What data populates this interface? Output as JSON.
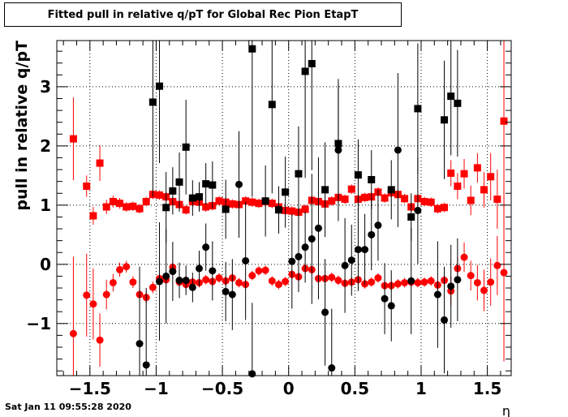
{
  "title": "Fitted pull in relative q/pT for Global Rec Pion EtapT",
  "timestamp": "Sat Jan 11 09:55:28 2020",
  "chart_data": {
    "type": "scatter",
    "xlabel": "η",
    "ylabel": "pull in relative q/pT",
    "xlim": [
      -1.75,
      1.68
    ],
    "ylim": [
      -1.88,
      3.78
    ],
    "xticks": [
      -1.5,
      -1,
      -0.5,
      0,
      0.5,
      1,
      1.5
    ],
    "xtick_labels": [
      "−1.5",
      "−1",
      "−0.5",
      "0",
      "0.5",
      "1",
      "1.5"
    ],
    "yticks": [
      -1,
      0,
      1,
      2,
      3
    ],
    "ytick_labels": [
      "−1",
      "0",
      "1",
      "2",
      "3"
    ],
    "grid": true,
    "colors": {
      "red": "#ff0000",
      "black": "#000000"
    },
    "series": [
      {
        "marker": "square",
        "color": "#ff0000",
        "points": [
          [
            -1.625,
            2.12,
            0.7
          ],
          [
            -1.525,
            1.32,
            0.18
          ],
          [
            -1.475,
            0.82,
            0.15
          ],
          [
            -1.425,
            1.71,
            0.3
          ],
          [
            -1.375,
            0.97,
            0.12
          ],
          [
            -1.325,
            1.06,
            0.1
          ],
          [
            -1.275,
            1.03,
            0.09
          ],
          [
            -1.225,
            0.97,
            0.08
          ],
          [
            -1.175,
            0.98,
            0.08
          ],
          [
            -1.125,
            0.94,
            0.08
          ],
          [
            -1.075,
            1.06,
            0.08
          ],
          [
            -1.025,
            1.18,
            0.08
          ],
          [
            -0.975,
            1.17,
            0.08
          ],
          [
            -0.925,
            1.14,
            0.08
          ],
          [
            -0.875,
            1.06,
            0.08
          ],
          [
            -0.825,
            1.01,
            0.08
          ],
          [
            -0.775,
            0.92,
            0.08
          ],
          [
            -0.725,
            1.06,
            0.08
          ],
          [
            -0.675,
            1.05,
            0.08
          ],
          [
            -0.625,
            0.97,
            0.08
          ],
          [
            -0.575,
            0.99,
            0.08
          ],
          [
            -0.525,
            1.07,
            0.08
          ],
          [
            -0.475,
            1.05,
            0.08
          ],
          [
            -0.425,
            1.02,
            0.08
          ],
          [
            -0.375,
            1.01,
            0.08
          ],
          [
            -0.325,
            1.07,
            0.08
          ],
          [
            -0.275,
            1.05,
            0.08
          ],
          [
            -0.225,
            1.03,
            0.08
          ],
          [
            -0.175,
            1.06,
            0.08
          ],
          [
            -0.125,
            1.03,
            0.08
          ],
          [
            -0.075,
            0.97,
            0.08
          ],
          [
            -0.025,
            0.91,
            0.08
          ],
          [
            0.025,
            0.9,
            0.08
          ],
          [
            0.075,
            0.88,
            0.08
          ],
          [
            0.125,
            0.93,
            0.08
          ],
          [
            0.175,
            1.08,
            0.08
          ],
          [
            0.225,
            1.06,
            0.08
          ],
          [
            0.275,
            1.02,
            0.08
          ],
          [
            0.325,
            1.07,
            0.08
          ],
          [
            0.375,
            1.13,
            0.08
          ],
          [
            0.425,
            1.1,
            0.08
          ],
          [
            0.475,
            1.27,
            0.08
          ],
          [
            0.525,
            1.1,
            0.08
          ],
          [
            0.575,
            1.13,
            0.08
          ],
          [
            0.625,
            1.14,
            0.08
          ],
          [
            0.675,
            1.22,
            0.08
          ],
          [
            0.725,
            1.12,
            0.08
          ],
          [
            0.775,
            1.21,
            0.08
          ],
          [
            0.825,
            1.18,
            0.08
          ],
          [
            0.875,
            1.11,
            0.08
          ],
          [
            0.925,
            0.97,
            0.08
          ],
          [
            0.975,
            1.11,
            0.08
          ],
          [
            1.025,
            1.06,
            0.08
          ],
          [
            1.075,
            1.05,
            0.08
          ],
          [
            1.125,
            0.94,
            0.08
          ],
          [
            1.175,
            0.96,
            0.08
          ],
          [
            1.225,
            1.54,
            0.22
          ],
          [
            1.275,
            1.32,
            0.22
          ],
          [
            1.325,
            1.53,
            0.25
          ],
          [
            1.375,
            1.08,
            0.25
          ],
          [
            1.425,
            1.63,
            0.25
          ],
          [
            1.475,
            1.26,
            0.3
          ],
          [
            1.525,
            1.48,
            0.4
          ],
          [
            1.575,
            1.1,
            0.5
          ],
          [
            1.625,
            2.42,
            2.0
          ]
        ]
      },
      {
        "marker": "circle",
        "color": "#ff0000",
        "points": [
          [
            -1.625,
            -1.17,
            1.3
          ],
          [
            -1.525,
            -0.52,
            0.7
          ],
          [
            -1.475,
            -0.67,
            0.6
          ],
          [
            -1.425,
            -1.28,
            0.45
          ],
          [
            -1.375,
            -0.51,
            0.25
          ],
          [
            -1.325,
            -0.31,
            0.15
          ],
          [
            -1.275,
            -0.09,
            0.12
          ],
          [
            -1.225,
            -0.04,
            0.1
          ],
          [
            -1.175,
            -0.3,
            0.1
          ],
          [
            -1.125,
            -0.51,
            0.1
          ],
          [
            -1.075,
            -0.56,
            0.1
          ],
          [
            -1.025,
            -0.39,
            0.1
          ],
          [
            -0.975,
            -0.24,
            0.08
          ],
          [
            -0.925,
            -0.26,
            0.08
          ],
          [
            -0.875,
            -0.05,
            0.08
          ],
          [
            -0.825,
            -0.3,
            0.08
          ],
          [
            -0.775,
            -0.34,
            0.08
          ],
          [
            -0.725,
            -0.3,
            0.08
          ],
          [
            -0.675,
            -0.31,
            0.08
          ],
          [
            -0.625,
            -0.26,
            0.08
          ],
          [
            -0.575,
            -0.29,
            0.08
          ],
          [
            -0.525,
            -0.23,
            0.08
          ],
          [
            -0.475,
            -0.28,
            0.08
          ],
          [
            -0.425,
            -0.23,
            0.08
          ],
          [
            -0.375,
            -0.31,
            0.08
          ],
          [
            -0.325,
            -0.34,
            0.08
          ],
          [
            -0.275,
            -0.19,
            0.08
          ],
          [
            -0.225,
            -0.11,
            0.08
          ],
          [
            -0.175,
            -0.1,
            0.08
          ],
          [
            -0.125,
            -0.28,
            0.08
          ],
          [
            -0.075,
            -0.34,
            0.08
          ],
          [
            -0.025,
            -0.29,
            0.08
          ],
          [
            0.025,
            -0.17,
            0.08
          ],
          [
            0.075,
            -0.21,
            0.08
          ],
          [
            0.125,
            -0.07,
            0.08
          ],
          [
            0.175,
            -0.09,
            0.08
          ],
          [
            0.225,
            -0.24,
            0.08
          ],
          [
            0.275,
            -0.24,
            0.08
          ],
          [
            0.325,
            -0.22,
            0.08
          ],
          [
            0.375,
            -0.27,
            0.08
          ],
          [
            0.425,
            -0.32,
            0.08
          ],
          [
            0.475,
            -0.3,
            0.08
          ],
          [
            0.525,
            -0.26,
            0.08
          ],
          [
            0.575,
            -0.33,
            0.08
          ],
          [
            0.625,
            -0.3,
            0.08
          ],
          [
            0.675,
            -0.23,
            0.08
          ],
          [
            0.725,
            -0.36,
            0.08
          ],
          [
            0.775,
            -0.36,
            0.08
          ],
          [
            0.825,
            -0.33,
            0.08
          ],
          [
            0.875,
            -0.31,
            0.08
          ],
          [
            0.925,
            -0.3,
            0.08
          ],
          [
            0.975,
            -0.31,
            0.08
          ],
          [
            1.025,
            -0.3,
            0.08
          ],
          [
            1.075,
            -0.28,
            0.08
          ],
          [
            1.125,
            -0.35,
            0.08
          ],
          [
            1.175,
            -0.27,
            0.1
          ],
          [
            1.225,
            -0.45,
            0.25
          ],
          [
            1.275,
            -0.07,
            0.2
          ],
          [
            1.325,
            0.12,
            0.25
          ],
          [
            1.375,
            -0.19,
            0.25
          ],
          [
            1.425,
            -0.31,
            0.3
          ],
          [
            1.475,
            -0.44,
            0.35
          ],
          [
            1.525,
            -0.3,
            0.4
          ],
          [
            1.575,
            -0.02,
            0.5
          ],
          [
            1.625,
            -0.14,
            1.5
          ]
        ]
      },
      {
        "marker": "square",
        "color": "#000000",
        "points": [
          [
            -1.025,
            2.74,
            1.6
          ],
          [
            -0.975,
            3.01,
            1.3
          ],
          [
            -0.925,
            0.96,
            0.6
          ],
          [
            -0.875,
            1.24,
            0.4
          ],
          [
            -0.825,
            1.39,
            0.5
          ],
          [
            -0.775,
            1.98,
            0.8
          ],
          [
            -0.725,
            1.12,
            0.3
          ],
          [
            -0.675,
            1.14,
            0.25
          ],
          [
            -0.625,
            1.36,
            0.35
          ],
          [
            -0.575,
            1.34,
            0.4
          ],
          [
            -0.475,
            0.93,
            0.5
          ],
          [
            -0.275,
            3.64,
            2.5
          ],
          [
            -0.175,
            1.07,
            0.6
          ],
          [
            -0.125,
            2.7,
            1.5
          ],
          [
            -0.075,
            0.92,
            0.4
          ],
          [
            -0.025,
            1.22,
            0.6
          ],
          [
            0.075,
            1.53,
            0.8
          ],
          [
            0.125,
            3.26,
            1.8
          ],
          [
            0.175,
            3.39,
            1.8
          ],
          [
            0.275,
            1.26,
            0.8
          ],
          [
            0.375,
            2.04,
            1.0
          ],
          [
            0.525,
            1.51,
            0.6
          ],
          [
            0.625,
            1.43,
            0.5
          ],
          [
            0.775,
            1.26,
            0.5
          ],
          [
            0.925,
            0.8,
            0.4
          ],
          [
            0.975,
            2.63,
            1.1
          ],
          [
            1.175,
            2.44,
            1.0
          ],
          [
            1.225,
            2.84,
            1.0
          ],
          [
            1.275,
            2.72,
            0.9
          ]
        ]
      },
      {
        "marker": "circle",
        "color": "#000000",
        "points": [
          [
            -1.125,
            -1.34,
            1.3
          ],
          [
            -1.075,
            -1.7,
            1.3
          ],
          [
            -0.975,
            -0.29,
            1.0
          ],
          [
            -0.925,
            -0.2,
            0.8
          ],
          [
            -0.875,
            -0.12,
            0.5
          ],
          [
            -0.825,
            -0.27,
            0.3
          ],
          [
            -0.775,
            -0.27,
            0.25
          ],
          [
            -0.725,
            -0.39,
            0.25
          ],
          [
            -0.675,
            -0.07,
            0.3
          ],
          [
            -0.625,
            0.29,
            0.4
          ],
          [
            -0.575,
            -0.11,
            0.5
          ],
          [
            -0.475,
            -0.46,
            0.5
          ],
          [
            -0.425,
            -0.51,
            0.6
          ],
          [
            -0.375,
            1.35,
            0.9
          ],
          [
            -0.325,
            0.06,
            1.0
          ],
          [
            -0.275,
            -1.85,
            1.2
          ],
          [
            0.025,
            0.05,
            0.8
          ],
          [
            0.075,
            0.13,
            0.6
          ],
          [
            0.125,
            0.29,
            0.6
          ],
          [
            0.175,
            0.43,
            1.1
          ],
          [
            0.225,
            0.61,
            1.2
          ],
          [
            0.275,
            -0.81,
            0.9
          ],
          [
            0.325,
            -1.75,
            1.0
          ],
          [
            0.375,
            1.93,
            1.2
          ],
          [
            0.425,
            -0.02,
            0.8
          ],
          [
            0.475,
            0.07,
            0.6
          ],
          [
            0.525,
            0.25,
            0.7
          ],
          [
            0.575,
            0.25,
            0.6
          ],
          [
            0.625,
            0.5,
            0.6
          ],
          [
            0.675,
            0.66,
            0.6
          ],
          [
            0.725,
            -0.58,
            0.6
          ],
          [
            0.775,
            -0.7,
            0.6
          ],
          [
            0.825,
            1.93,
            1.3
          ],
          [
            0.925,
            -0.28,
            0.9
          ],
          [
            0.975,
            0.91,
            0.9
          ],
          [
            1.125,
            -0.51,
            0.9
          ],
          [
            1.175,
            -0.94,
            0.9
          ],
          [
            1.225,
            -0.37,
            0.7
          ],
          [
            1.275,
            -0.26,
            0.7
          ]
        ]
      }
    ]
  }
}
